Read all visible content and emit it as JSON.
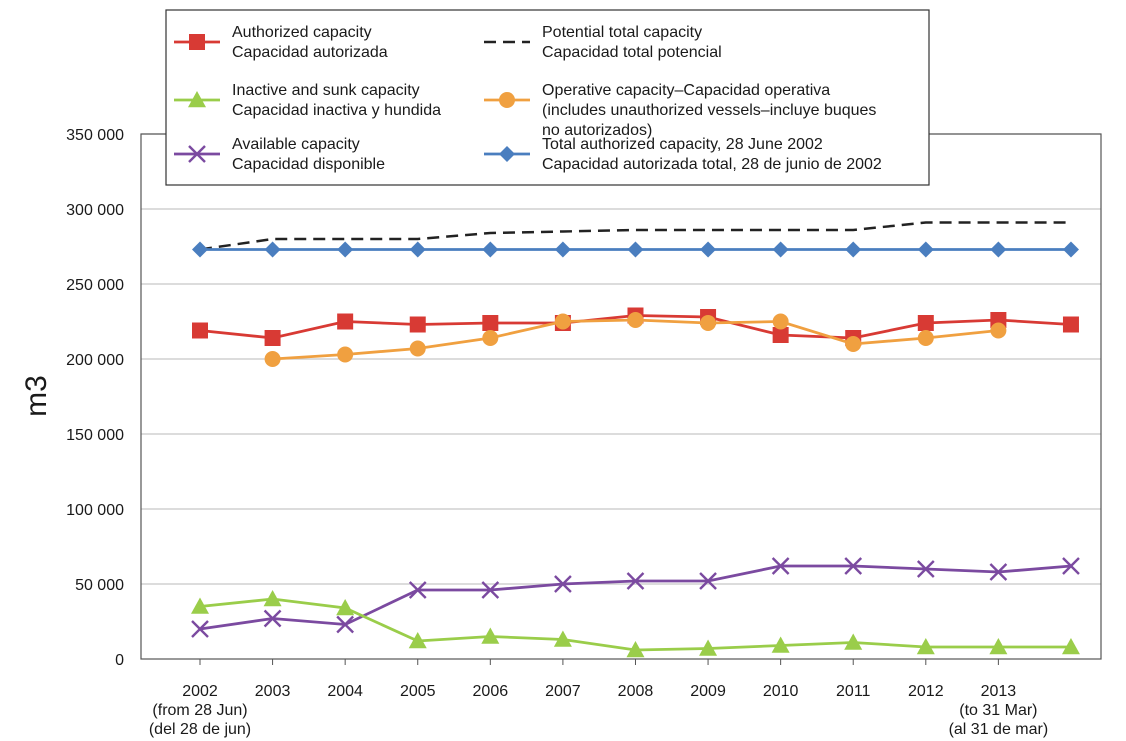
{
  "chart_data": {
    "type": "line",
    "title": "",
    "xlabel": "",
    "ylabel": "m3",
    "ylim": [
      0,
      350000
    ],
    "yticks": [
      0,
      50000,
      100000,
      150000,
      200000,
      250000,
      300000,
      350000
    ],
    "ytick_labels": [
      "0",
      "50 000",
      "100 000",
      "150 000",
      "200 000",
      "250 000",
      "300 000",
      "350 000"
    ],
    "grid": true,
    "legend_position": "top-right",
    "x_labels": [
      [
        "2002",
        "(from 28 Jun)",
        "(del 28 de jun)"
      ],
      [
        "2003"
      ],
      [
        "2004"
      ],
      [
        "2005"
      ],
      [
        "2006"
      ],
      [
        "2007"
      ],
      [
        "2008"
      ],
      [
        "2009"
      ],
      [
        "2010"
      ],
      [
        "2011"
      ],
      [
        "2012"
      ],
      [
        "2013",
        "(to 31 Mar)",
        "(al 31 de mar)"
      ]
    ],
    "points_x": [
      0,
      1,
      2,
      3,
      4,
      5,
      6,
      7,
      8,
      9,
      10,
      11,
      12
    ],
    "series": [
      {
        "name": "Potential total capacity",
        "name2": "Capacidad total potencial",
        "name3": "",
        "color": "#222222",
        "marker": "dash",
        "x": [
          0,
          1,
          2,
          3,
          4,
          5,
          6,
          7,
          8,
          9,
          10,
          11,
          12
        ],
        "values": [
          273000,
          280000,
          280000,
          280000,
          284000,
          285000,
          286000,
          286000,
          286000,
          286000,
          291000,
          291000,
          291000
        ]
      },
      {
        "name": "Total authorized capacity, 28 June 2002",
        "name2": "Capacidad autorizada total, 28 de junio de 2002",
        "name3": "",
        "color": "#4a7ebf",
        "marker": "diamond",
        "x": [
          0,
          1,
          2,
          3,
          4,
          5,
          6,
          7,
          8,
          9,
          10,
          11,
          12
        ],
        "values": [
          273000,
          273000,
          273000,
          273000,
          273000,
          273000,
          273000,
          273000,
          273000,
          273000,
          273000,
          273000,
          273000
        ]
      },
      {
        "name": "Authorized capacity",
        "name2": "Capacidad autorizada",
        "name3": "",
        "color": "#d83a34",
        "marker": "square",
        "x": [
          0,
          1,
          2,
          3,
          4,
          5,
          6,
          7,
          8,
          9,
          10,
          11,
          12
        ],
        "values": [
          219000,
          214000,
          225000,
          223000,
          224000,
          224000,
          229000,
          228000,
          216000,
          214000,
          224000,
          226000,
          223000
        ]
      },
      {
        "name": "Operative capacity–Capacidad operativa",
        "name2": "(includes unauthorized vessels–incluye buques",
        "name3": "no autorizados)",
        "color": "#f0a040",
        "marker": "circle",
        "x": [
          1,
          2,
          3,
          4,
          5,
          6,
          7,
          8,
          9,
          10,
          11
        ],
        "values": [
          200000,
          203000,
          207000,
          214000,
          225000,
          226000,
          224000,
          225000,
          210000,
          214000,
          219000
        ]
      },
      {
        "name": "Available capacity",
        "name2": "Capacidad disponible",
        "name3": "",
        "color": "#7b4aa0",
        "marker": "x",
        "x": [
          0,
          1,
          2,
          3,
          4,
          5,
          6,
          7,
          8,
          9,
          10,
          11,
          12
        ],
        "values": [
          20000,
          27000,
          23000,
          46000,
          46000,
          50000,
          52000,
          52000,
          62000,
          62000,
          60000,
          58000,
          62000
        ]
      },
      {
        "name": "Inactive and sunk capacity",
        "name2": "Capacidad inactiva y hundida",
        "name3": "",
        "color": "#9acd4a",
        "marker": "triangle",
        "x": [
          0,
          1,
          2,
          3,
          4,
          5,
          6,
          7,
          8,
          9,
          10,
          11,
          12
        ],
        "values": [
          35000,
          40000,
          34000,
          12000,
          15000,
          13000,
          6000,
          7000,
          9000,
          11000,
          8000,
          8000,
          8000
        ]
      }
    ],
    "legend_order": [
      "Authorized capacity",
      "Potential total capacity",
      "Inactive and sunk capacity",
      "Operative capacity–Capacidad operativa",
      "Available capacity",
      "Total authorized capacity, 28 June 2002"
    ]
  }
}
